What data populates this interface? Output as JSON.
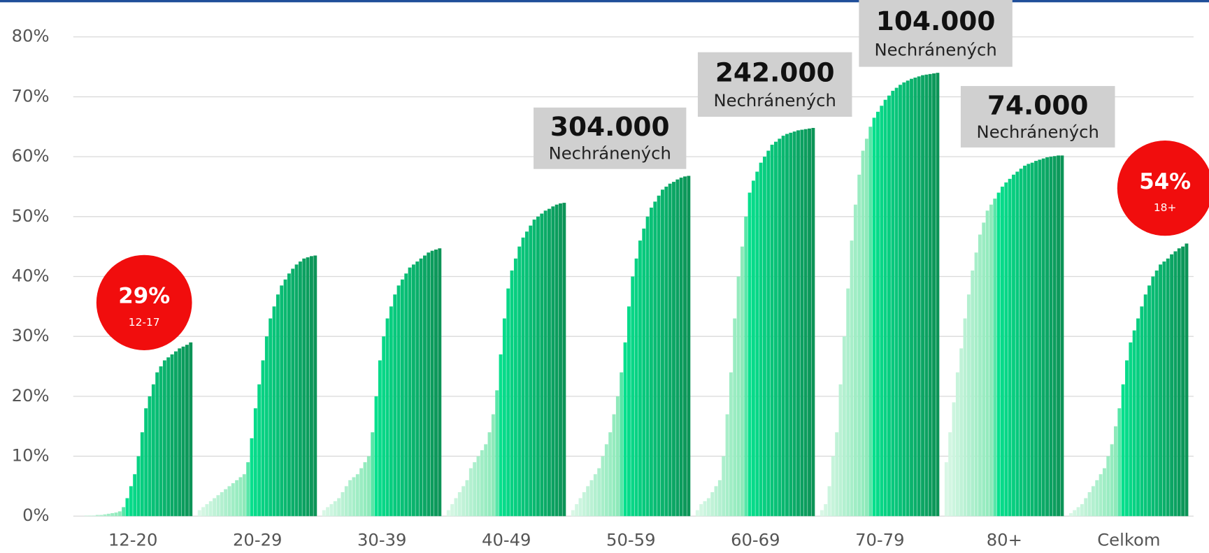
{
  "chart_data": {
    "type": "bar",
    "categories": [
      "12-20",
      "20-29",
      "30-39",
      "40-49",
      "50-59",
      "60-69",
      "70-79",
      "80+",
      "Celkom"
    ],
    "series_values": [
      [
        0,
        0,
        0,
        0.1,
        0.1,
        0.1,
        0.2,
        0.2,
        0.3,
        0.4,
        0.5,
        0.6,
        0.8,
        1.5,
        3,
        5,
        7,
        10,
        14,
        18,
        20,
        22,
        24,
        25,
        26,
        26.5,
        27,
        27.5,
        28,
        28.3,
        28.6,
        29
      ],
      [
        1,
        1.5,
        2,
        2.5,
        3,
        3.5,
        4,
        4.5,
        5,
        5.5,
        6,
        6.5,
        7,
        9,
        13,
        18,
        22,
        26,
        30,
        33,
        35,
        37,
        38.5,
        39.5,
        40.5,
        41.3,
        42,
        42.5,
        43,
        43.2,
        43.4,
        43.5
      ],
      [
        1,
        1.5,
        2,
        2.5,
        3,
        4,
        5,
        6,
        6.5,
        7,
        8,
        9,
        10,
        14,
        20,
        26,
        30,
        33,
        35,
        37,
        38.5,
        39.5,
        40.5,
        41.5,
        42,
        42.5,
        43,
        43.5,
        44,
        44.3,
        44.5,
        44.7
      ],
      [
        1,
        2,
        3,
        4,
        5,
        6,
        8,
        9,
        10,
        11,
        12,
        14,
        17,
        21,
        27,
        33,
        38,
        41,
        43,
        45,
        46.5,
        47.5,
        48.5,
        49.5,
        50,
        50.5,
        51,
        51.3,
        51.7,
        52,
        52.2,
        52.3
      ],
      [
        1,
        2,
        3,
        4,
        5,
        6,
        7,
        8,
        10,
        12,
        14,
        17,
        20,
        24,
        29,
        35,
        40,
        43,
        46,
        48,
        50,
        51.5,
        52.5,
        53.5,
        54.5,
        55,
        55.5,
        55.8,
        56.2,
        56.5,
        56.7,
        56.8
      ],
      [
        1,
        2,
        2.5,
        3,
        4,
        5,
        6,
        10,
        17,
        24,
        33,
        40,
        45,
        50,
        54,
        56,
        57.5,
        59,
        60,
        61,
        62,
        62.5,
        63,
        63.5,
        63.8,
        64,
        64.2,
        64.4,
        64.5,
        64.6,
        64.7,
        64.8
      ],
      [
        1,
        2,
        5,
        10,
        14,
        22,
        30,
        38,
        46,
        52,
        57,
        61,
        63,
        65,
        66.5,
        67.5,
        68.5,
        69.5,
        70.2,
        71,
        71.5,
        72,
        72.4,
        72.7,
        73,
        73.2,
        73.4,
        73.6,
        73.7,
        73.8,
        73.9,
        74
      ],
      [
        9,
        14,
        19,
        24,
        28,
        33,
        37,
        41,
        44,
        47,
        49,
        51,
        52,
        53,
        54,
        55,
        55.7,
        56.3,
        57,
        57.5,
        58,
        58.5,
        58.8,
        59,
        59.3,
        59.5,
        59.7,
        59.9,
        60,
        60.1,
        60.2,
        60.2
      ],
      [
        0.5,
        1,
        1.5,
        2,
        3,
        4,
        5,
        6,
        7,
        8,
        10,
        12,
        15,
        18,
        22,
        26,
        29,
        31,
        33,
        35,
        37,
        38.5,
        40,
        41,
        42,
        42.5,
        43,
        43.7,
        44.2,
        44.7,
        45,
        45.5
      ]
    ],
    "colors": [
      "#d9f7e6",
      "#8be9b9",
      "#07e08d",
      "#0c9457"
    ],
    "ylim": [
      0,
      80
    ],
    "yticks": [
      {
        "value": 0,
        "label": "0%"
      },
      {
        "value": 10,
        "label": "10%"
      },
      {
        "value": 20,
        "label": "20%"
      },
      {
        "value": 30,
        "label": "30%"
      },
      {
        "value": 40,
        "label": "40%"
      },
      {
        "value": 50,
        "label": "50%"
      },
      {
        "value": 60,
        "label": "60%"
      },
      {
        "value": 70,
        "label": "70%"
      },
      {
        "value": 80,
        "label": "80%"
      }
    ],
    "grid": true,
    "annotations": [
      {
        "value": "304.000",
        "label": "Nechránených"
      },
      {
        "value": "242.000",
        "label": "Nechránených"
      },
      {
        "value": "104.000",
        "label": "Nechránených"
      },
      {
        "value": "74.000",
        "label": "Nechránených"
      }
    ],
    "badges": [
      {
        "value": "29%",
        "label": "12-17"
      },
      {
        "value": "54%",
        "label": "18+"
      }
    ]
  }
}
